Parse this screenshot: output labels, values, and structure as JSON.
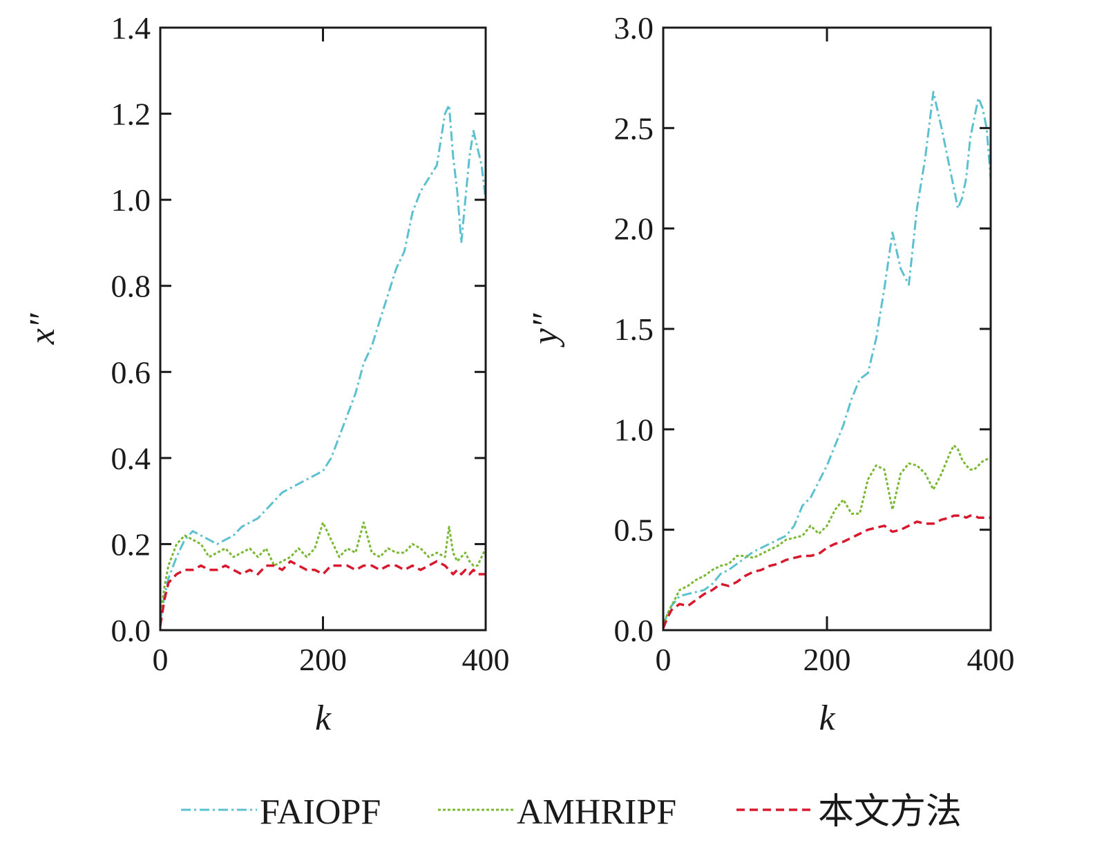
{
  "chart_data": [
    {
      "type": "line",
      "xlabel": "k",
      "ylabel": "x″",
      "xlim": [
        0,
        400
      ],
      "ylim": [
        0,
        1.4
      ],
      "xticks": [
        "0",
        "200",
        "400"
      ],
      "yticks": [
        "0.0",
        "0.2",
        "0.4",
        "0.6",
        "0.8",
        "1.0",
        "1.2",
        "1.4"
      ],
      "x": [
        0,
        5,
        10,
        20,
        30,
        40,
        50,
        60,
        70,
        80,
        90,
        100,
        110,
        120,
        130,
        140,
        150,
        160,
        170,
        180,
        190,
        200,
        210,
        220,
        230,
        240,
        250,
        260,
        270,
        280,
        290,
        300,
        310,
        320,
        330,
        340,
        350,
        355,
        360,
        365,
        370,
        375,
        380,
        385,
        390,
        395,
        400
      ],
      "series": [
        {
          "name": "FAIOPF",
          "values": [
            0.02,
            0.08,
            0.12,
            0.17,
            0.21,
            0.23,
            0.22,
            0.21,
            0.2,
            0.21,
            0.22,
            0.24,
            0.25,
            0.26,
            0.28,
            0.3,
            0.32,
            0.33,
            0.34,
            0.35,
            0.36,
            0.37,
            0.4,
            0.45,
            0.5,
            0.55,
            0.62,
            0.66,
            0.72,
            0.78,
            0.84,
            0.88,
            0.97,
            1.02,
            1.05,
            1.08,
            1.2,
            1.22,
            1.1,
            1.02,
            0.9,
            1.0,
            1.1,
            1.16,
            1.12,
            1.08,
            1.0
          ]
        },
        {
          "name": "AMHRIPF",
          "values": [
            0.03,
            0.1,
            0.15,
            0.2,
            0.22,
            0.21,
            0.2,
            0.17,
            0.18,
            0.19,
            0.17,
            0.18,
            0.19,
            0.17,
            0.19,
            0.15,
            0.16,
            0.17,
            0.19,
            0.17,
            0.19,
            0.25,
            0.21,
            0.17,
            0.19,
            0.18,
            0.25,
            0.18,
            0.17,
            0.19,
            0.18,
            0.18,
            0.2,
            0.19,
            0.17,
            0.18,
            0.17,
            0.24,
            0.18,
            0.16,
            0.17,
            0.18,
            0.16,
            0.15,
            0.15,
            0.17,
            0.19
          ]
        },
        {
          "name": "本文方法",
          "values": [
            0.01,
            0.07,
            0.11,
            0.13,
            0.14,
            0.14,
            0.15,
            0.14,
            0.14,
            0.15,
            0.14,
            0.13,
            0.14,
            0.13,
            0.15,
            0.15,
            0.14,
            0.16,
            0.15,
            0.14,
            0.14,
            0.13,
            0.15,
            0.15,
            0.15,
            0.14,
            0.15,
            0.15,
            0.14,
            0.15,
            0.15,
            0.14,
            0.15,
            0.14,
            0.15,
            0.16,
            0.15,
            0.14,
            0.13,
            0.14,
            0.13,
            0.14,
            0.13,
            0.14,
            0.13,
            0.13,
            0.13
          ]
        }
      ]
    },
    {
      "type": "line",
      "xlabel": "k",
      "ylabel": "y″",
      "xlim": [
        0,
        400
      ],
      "ylim": [
        0,
        3.0
      ],
      "xticks": [
        "0",
        "200",
        "400"
      ],
      "yticks": [
        "0.0",
        "0.5",
        "1.0",
        "1.5",
        "2.0",
        "2.5",
        "3.0"
      ],
      "x": [
        0,
        5,
        10,
        20,
        30,
        40,
        50,
        60,
        70,
        80,
        90,
        100,
        110,
        120,
        130,
        140,
        150,
        160,
        170,
        180,
        190,
        200,
        210,
        220,
        230,
        240,
        250,
        260,
        270,
        280,
        290,
        300,
        310,
        320,
        330,
        340,
        350,
        355,
        360,
        365,
        370,
        375,
        380,
        385,
        390,
        395,
        400
      ],
      "series": [
        {
          "name": "FAIOPF",
          "values": [
            0.02,
            0.08,
            0.12,
            0.17,
            0.18,
            0.19,
            0.2,
            0.23,
            0.28,
            0.3,
            0.33,
            0.36,
            0.39,
            0.41,
            0.43,
            0.45,
            0.47,
            0.52,
            0.62,
            0.66,
            0.74,
            0.82,
            0.92,
            1.02,
            1.15,
            1.25,
            1.28,
            1.45,
            1.7,
            1.98,
            1.8,
            1.72,
            2.1,
            2.35,
            2.68,
            2.5,
            2.3,
            2.2,
            2.1,
            2.15,
            2.25,
            2.45,
            2.55,
            2.65,
            2.6,
            2.5,
            2.25
          ]
        },
        {
          "name": "AMHRIPF",
          "values": [
            0.02,
            0.08,
            0.12,
            0.2,
            0.22,
            0.25,
            0.27,
            0.3,
            0.32,
            0.33,
            0.37,
            0.37,
            0.36,
            0.38,
            0.4,
            0.42,
            0.45,
            0.46,
            0.47,
            0.52,
            0.48,
            0.52,
            0.6,
            0.65,
            0.58,
            0.58,
            0.75,
            0.82,
            0.8,
            0.6,
            0.78,
            0.83,
            0.82,
            0.78,
            0.7,
            0.78,
            0.88,
            0.92,
            0.9,
            0.85,
            0.82,
            0.8,
            0.8,
            0.82,
            0.84,
            0.85,
            0.86
          ]
        },
        {
          "name": "本文方法",
          "values": [
            0.01,
            0.06,
            0.1,
            0.13,
            0.12,
            0.15,
            0.18,
            0.2,
            0.23,
            0.22,
            0.24,
            0.27,
            0.29,
            0.3,
            0.32,
            0.33,
            0.35,
            0.36,
            0.37,
            0.37,
            0.38,
            0.41,
            0.43,
            0.44,
            0.46,
            0.48,
            0.5,
            0.51,
            0.52,
            0.49,
            0.5,
            0.52,
            0.54,
            0.53,
            0.53,
            0.55,
            0.56,
            0.57,
            0.57,
            0.57,
            0.56,
            0.57,
            0.57,
            0.56,
            0.56,
            0.56,
            0.56
          ]
        }
      ]
    }
  ],
  "legend": {
    "items": [
      {
        "label": "FAIOPF",
        "color": "#5bc0d0",
        "dash": "dash-dot"
      },
      {
        "label": "AMHRIPF",
        "color": "#78b832",
        "dash": "dotted"
      },
      {
        "label": "本文方法",
        "color": "#d8182c",
        "dash": "dashed"
      }
    ]
  }
}
